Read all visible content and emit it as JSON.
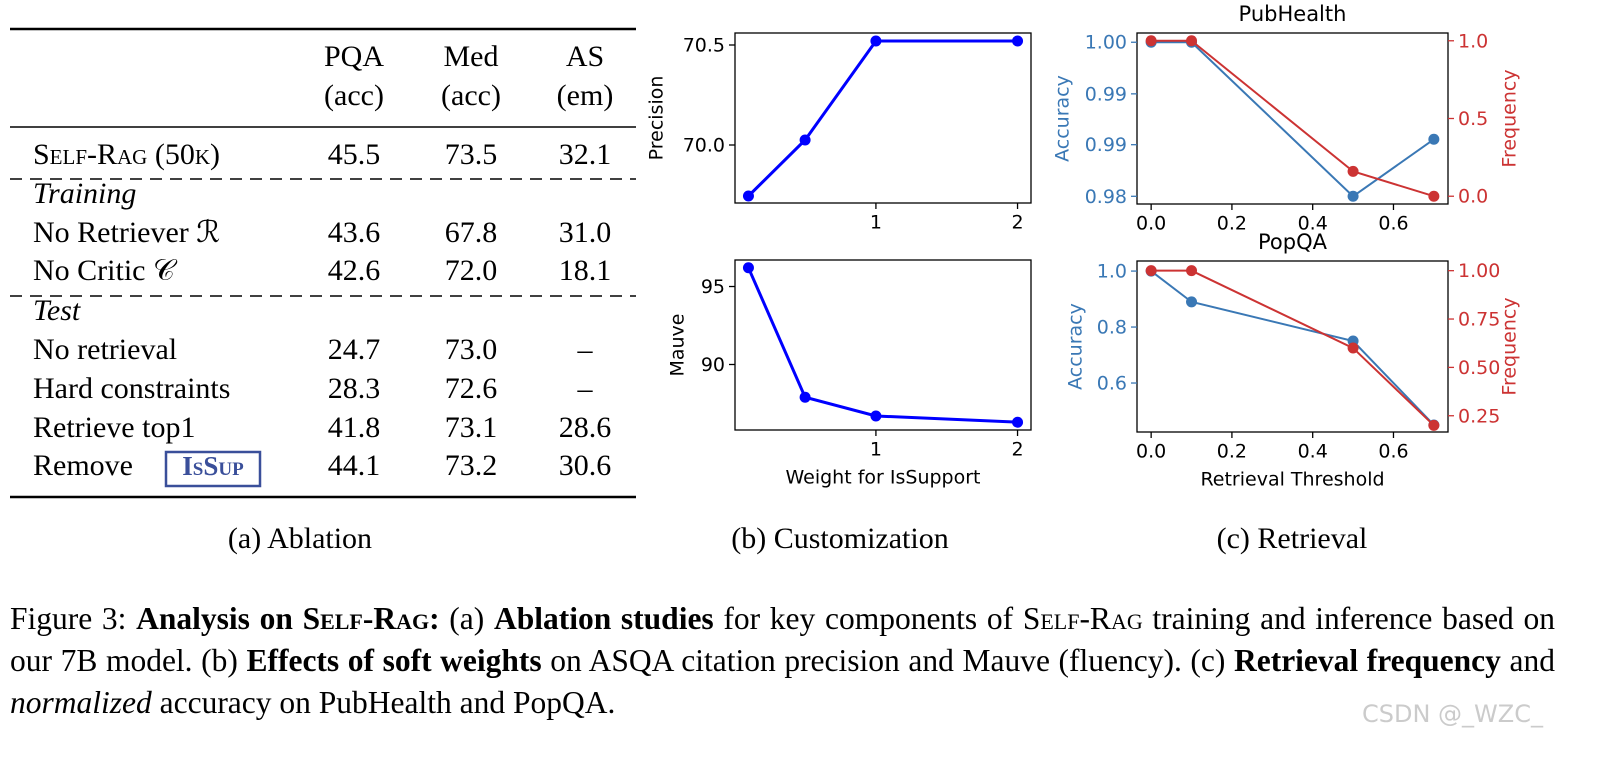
{
  "table": {
    "header": [
      [
        "PQA",
        "(acc)"
      ],
      [
        "Med",
        "(acc)"
      ],
      [
        "AS",
        "(em)"
      ]
    ],
    "rows": [
      {
        "label": "Self-Rag (50k)",
        "cells": [
          "45.5",
          "73.5",
          "32.1"
        ]
      },
      {
        "section": "Training"
      },
      {
        "label": "No Retriever ℛ",
        "cells": [
          "43.6",
          "67.8",
          "31.0"
        ]
      },
      {
        "label": "No Critic 𝒞",
        "cells": [
          "42.6",
          "72.0",
          "18.1"
        ]
      },
      {
        "section": "Test"
      },
      {
        "label": "No retrieval",
        "cells": [
          "24.7",
          "73.0",
          "–"
        ]
      },
      {
        "label": "Hard constraints",
        "cells": [
          "28.3",
          "72.6",
          "–"
        ]
      },
      {
        "label": "Retrieve top1",
        "cells": [
          "41.8",
          "73.1",
          "28.6"
        ]
      },
      {
        "label": "Remove",
        "badge": "IsSup",
        "cells": [
          "44.1",
          "73.2",
          "30.6"
        ]
      }
    ]
  },
  "chart_data": [
    {
      "type": "line",
      "ylabel": "Precision",
      "x": [
        0.1,
        0.5,
        1,
        2
      ],
      "series": [
        {
          "color": "#0000ff",
          "values": [
            69.745,
            70.025,
            70.52,
            70.52
          ]
        }
      ],
      "xlim": [
        0.005,
        2.095
      ],
      "xticks": [
        1,
        2
      ],
      "ylim": [
        69.71,
        70.56
      ],
      "yticks": [
        {
          "value": 70,
          "label": "70.0"
        },
        70.5
      ]
    },
    {
      "type": "line",
      "ylabel": "Mauve",
      "xlabel": "Weight for IsSupport",
      "x": [
        0.1,
        0.5,
        1,
        2
      ],
      "series": [
        {
          "color": "#0000ff",
          "values": [
            96.2,
            87.9,
            86.7,
            86.3
          ]
        }
      ],
      "xlim": [
        0.005,
        2.095
      ],
      "xticks": [
        1,
        2
      ],
      "ylim": [
        85.8,
        96.7
      ],
      "yticks": [
        90,
        95
      ]
    },
    {
      "type": "line",
      "title": "PubHealth",
      "ylabel": "Accuracy",
      "y2label": "Frequency",
      "x": [
        0,
        0.1,
        0.5,
        0.7
      ],
      "series": [
        {
          "color": "#3a78b5",
          "values": [
            1,
            1,
            0.98,
            0.9874
          ]
        },
        {
          "color": "#cc3333",
          "axis": "y2",
          "values": [
            1,
            1,
            0.16,
            0
          ]
        }
      ],
      "xlim": [
        -0.035,
        0.735
      ],
      "xticks": [
        {
          "value": 0,
          "label": "0.0"
        },
        0.2,
        0.4,
        0.6
      ],
      "ylim": [
        0.979,
        1.0012
      ],
      "yticks": [
        {
          "value": 0.98,
          "label": "0.98"
        },
        {
          "value": 0.9867,
          "label": "0.99"
        },
        {
          "value": 0.9933,
          "label": "0.99"
        },
        {
          "value": 1,
          "label": "1.00"
        }
      ],
      "y2lim": [
        -0.05,
        1.05
      ],
      "y2ticks": [
        {
          "value": 0,
          "label": "0.0"
        },
        0.5,
        {
          "value": 1,
          "label": "1.0"
        }
      ]
    },
    {
      "type": "line",
      "title": "PopQA",
      "ylabel": "Accuracy",
      "y2label": "Frequency",
      "xlabel": "Retrieval Threshold",
      "x": [
        0,
        0.1,
        0.5,
        0.7
      ],
      "series": [
        {
          "color": "#3a78b5",
          "values": [
            1,
            0.89,
            0.75,
            0.45
          ]
        },
        {
          "color": "#cc3333",
          "axis": "y2",
          "values": [
            1,
            1,
            0.6,
            0.2
          ]
        }
      ],
      "xlim": [
        -0.035,
        0.735
      ],
      "xticks": [
        {
          "value": 0,
          "label": "0.0"
        },
        0.2,
        0.4,
        0.6
      ],
      "ylim": [
        0.425,
        1.036
      ],
      "yticks": [
        0.6,
        0.8,
        {
          "value": 1,
          "label": "1.0"
        }
      ],
      "y2lim": [
        0.166,
        1.05
      ],
      "y2ticks": [
        0.25,
        {
          "value": 0.5,
          "label": "0.50"
        },
        0.75,
        {
          "value": 1,
          "label": "1.00"
        }
      ]
    }
  ],
  "panels": [
    "(a) Ablation",
    "(b) Customization",
    "(c) Retrieval"
  ],
  "caption": [
    "Figure 3: ",
    "Analysis on ",
    "Self-Rag",
    ":",
    " (a) ",
    "Ablation studies",
    " for key components of ",
    "Self-Rag",
    " training and inference based on our 7B model. (b) ",
    "Effects of soft weights",
    " on ASQA citation precision and Mauve (fluency). (c) ",
    "Retrieval frequency",
    " and ",
    "normalized",
    " accuracy on PubHealth and PopQA."
  ],
  "watermark": "CSDN @_WZC_"
}
